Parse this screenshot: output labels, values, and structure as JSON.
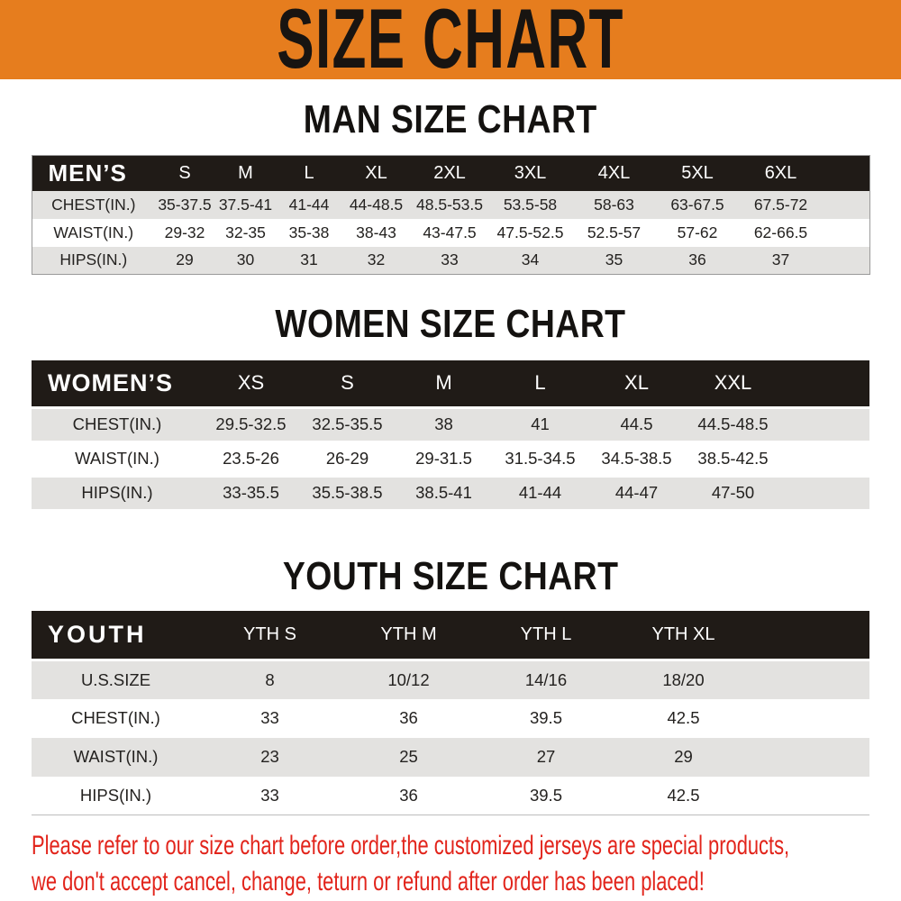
{
  "banner": {
    "title": "SIZE CHART",
    "bg_color": "#E67D1E"
  },
  "colors": {
    "table_header_bg": "#201B17",
    "row_band_bg": "#E3E2E0",
    "note_color": "#E2241B"
  },
  "sections": [
    {
      "heading": "MAN SIZE CHART",
      "table": {
        "header_label": "MEN’S",
        "columns": [
          "S",
          "M",
          "L",
          "XL",
          "2XL",
          "3XL",
          "4XL",
          "5XL",
          "6XL"
        ],
        "rows": [
          {
            "label": "CHEST(IN.)",
            "values": [
              "35-37.5",
              "37.5-41",
              "41-44",
              "44-48.5",
              "48.5-53.5",
              "53.5-58",
              "58-63",
              "63-67.5",
              "67.5-72"
            ]
          },
          {
            "label": "WAIST(IN.)",
            "values": [
              "29-32",
              "32-35",
              "35-38",
              "38-43",
              "43-47.5",
              "47.5-52.5",
              "52.5-57",
              "57-62",
              "62-66.5"
            ]
          },
          {
            "label": "HIPS(IN.)",
            "values": [
              "29",
              "30",
              "31",
              "32",
              "33",
              "34",
              "35",
              "36",
              "37"
            ]
          }
        ]
      }
    },
    {
      "heading": "WOMEN SIZE CHART",
      "table": {
        "header_label": "WOMEN’S",
        "columns": [
          "XS",
          "S",
          "M",
          "L",
          "XL",
          "XXL"
        ],
        "rows": [
          {
            "label": "CHEST(IN.)",
            "values": [
              "29.5-32.5",
              "32.5-35.5",
              "38",
              "41",
              "44.5",
              "44.5-48.5"
            ]
          },
          {
            "label": "WAIST(IN.)",
            "values": [
              "23.5-26",
              "26-29",
              "29-31.5",
              "31.5-34.5",
              "34.5-38.5",
              "38.5-42.5"
            ]
          },
          {
            "label": "HIPS(IN.)",
            "values": [
              "33-35.5",
              "35.5-38.5",
              "38.5-41",
              "41-44",
              "44-47",
              "47-50"
            ]
          }
        ]
      }
    },
    {
      "heading": "YOUTH SIZE CHART",
      "table": {
        "header_label": "YOUTH",
        "columns": [
          "YTH S",
          "YTH M",
          "YTH L",
          "YTH XL"
        ],
        "rows": [
          {
            "label": "U.S.SIZE",
            "values": [
              "8",
              "10/12",
              "14/16",
              "18/20"
            ]
          },
          {
            "label": "CHEST(IN.)",
            "values": [
              "33",
              "36",
              "39.5",
              "42.5"
            ]
          },
          {
            "label": "WAIST(IN.)",
            "values": [
              "23",
              "25",
              "27",
              "29"
            ]
          },
          {
            "label": "HIPS(IN.)",
            "values": [
              "33",
              "36",
              "39.5",
              "42.5"
            ]
          }
        ]
      }
    }
  ],
  "footer_note": {
    "lines": [
      "Please refer to our size chart before order,the customized jerseys are special products,",
      "we don't accept cancel, change, teturn or refund after order has been placed!"
    ]
  }
}
